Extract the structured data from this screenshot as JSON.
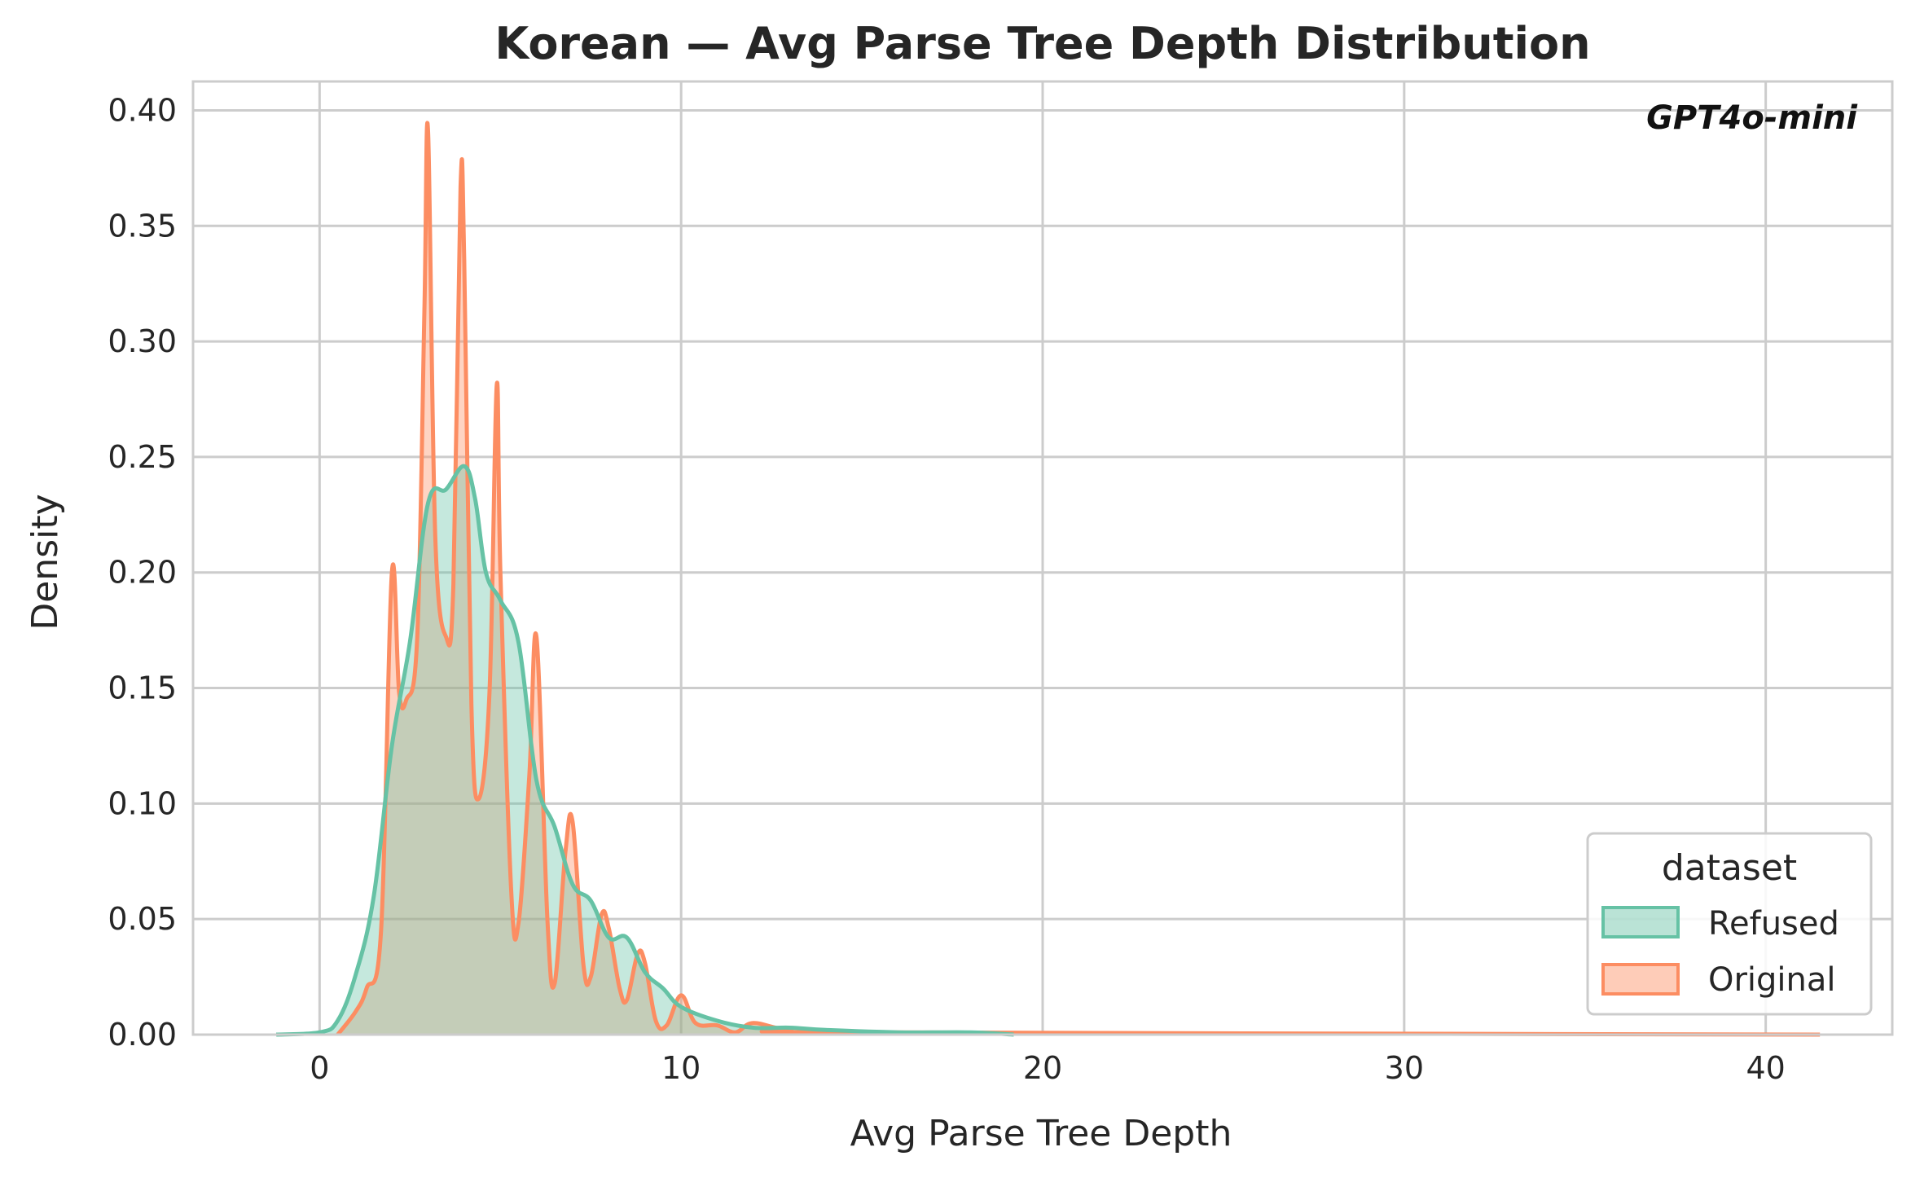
{
  "chart_data": {
    "type": "area",
    "title": "Korean — Avg Parse Tree Depth Distribution",
    "xlabel": "Avg Parse Tree Depth",
    "ylabel": "Density",
    "annotation": "GPT4o-mini",
    "xlim": [
      -3.5,
      43.5
    ],
    "ylim": [
      0,
      0.4125
    ],
    "x_ticks": [
      0,
      10,
      20,
      30,
      40
    ],
    "y_ticks": [
      0.0,
      0.05,
      0.1,
      0.15,
      0.2,
      0.25,
      0.3,
      0.35,
      0.4
    ],
    "x_tick_labels": [
      "0",
      "10",
      "20",
      "30",
      "40"
    ],
    "y_tick_labels": [
      "0.00",
      "0.05",
      "0.10",
      "0.15",
      "0.20",
      "0.25",
      "0.30",
      "0.35",
      "0.40"
    ],
    "grid": true,
    "legend": {
      "title": "dataset",
      "placement": "lower-right"
    },
    "series": [
      {
        "name": "Refused",
        "color": "#66c2a5",
        "x": [
          -1.2,
          0,
          0.5,
          1.0,
          1.5,
          2.0,
          2.5,
          3.0,
          3.5,
          4.0,
          4.3,
          4.6,
          5.0,
          5.5,
          6.0,
          6.5,
          7.0,
          7.5,
          8.0,
          8.5,
          9.0,
          9.5,
          10.0,
          11.0,
          12.0,
          13.0,
          14.0,
          16.0,
          18.0,
          19.2
        ],
        "y": [
          0.0,
          0.001,
          0.006,
          0.026,
          0.06,
          0.125,
          0.17,
          0.23,
          0.236,
          0.246,
          0.232,
          0.2,
          0.188,
          0.17,
          0.11,
          0.09,
          0.065,
          0.058,
          0.042,
          0.042,
          0.027,
          0.02,
          0.012,
          0.006,
          0.003,
          0.003,
          0.002,
          0.001,
          0.001,
          0.0
        ]
      },
      {
        "name": "Original",
        "color": "#fc8d62",
        "x": [
          0.5,
          1.0,
          1.3,
          1.7,
          2.0,
          2.2,
          2.4,
          2.7,
          2.9,
          3.0,
          3.2,
          3.5,
          3.7,
          3.9,
          4.0,
          4.2,
          4.4,
          4.7,
          4.9,
          5.0,
          5.3,
          5.5,
          5.8,
          6.0,
          6.3,
          6.5,
          6.8,
          7.0,
          7.3,
          7.5,
          7.8,
          8.0,
          8.3,
          8.5,
          8.8,
          9.0,
          9.3,
          9.6,
          10.0,
          10.4,
          11.0,
          11.5,
          12.0,
          13.0,
          15.0,
          41.5
        ],
        "y": [
          0.0,
          0.01,
          0.02,
          0.045,
          0.2,
          0.148,
          0.145,
          0.172,
          0.315,
          0.391,
          0.215,
          0.172,
          0.195,
          0.367,
          0.335,
          0.143,
          0.102,
          0.148,
          0.281,
          0.2,
          0.062,
          0.048,
          0.112,
          0.172,
          0.05,
          0.022,
          0.079,
          0.092,
          0.03,
          0.025,
          0.052,
          0.046,
          0.02,
          0.015,
          0.035,
          0.031,
          0.006,
          0.004,
          0.017,
          0.005,
          0.004,
          0.001,
          0.005,
          0.002,
          0.001,
          0.0
        ]
      }
    ]
  }
}
